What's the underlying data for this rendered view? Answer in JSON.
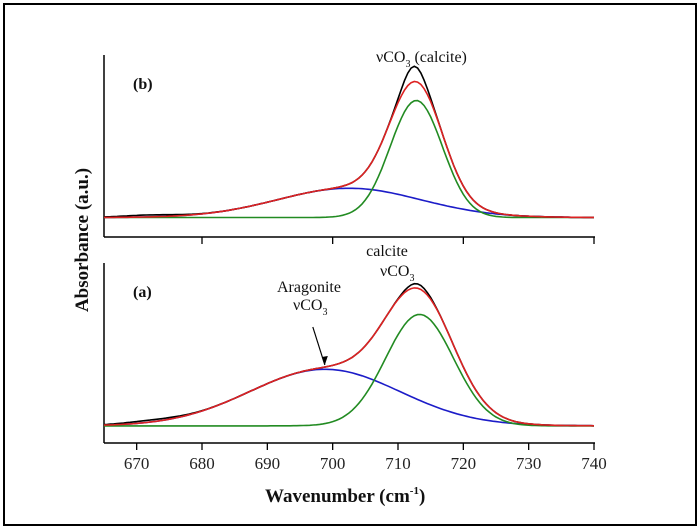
{
  "chart_data": {
    "type": "line",
    "xlabel": "Wavenumber (cm",
    "xlabel_sup": "-1",
    "xlabel_close": ")",
    "ylabel": "Absorbance (a.u.)",
    "xlim": [
      665,
      740
    ],
    "xticks": [
      670,
      680,
      690,
      700,
      710,
      720,
      730,
      740
    ],
    "grid": false,
    "legend": "none",
    "series_colors": {
      "measured": "#000000",
      "fit_sum": "#dd2222",
      "calcite_component": "#228b22",
      "aragonite_component": "#1c1cc8"
    },
    "panels": [
      {
        "id": "b",
        "label": "(b)",
        "annotation": {
          "prefix": "ν",
          "text": "CO",
          "sub": "3",
          "suffix": " (calcite)"
        },
        "baseline": 0.0,
        "ylim": [
          -0.12,
          1.0
        ],
        "components": {
          "calcite": {
            "center": 712.8,
            "amplitude": 0.72,
            "sigma": 4.0
          },
          "aragonite": {
            "center": 702.5,
            "amplitude": 0.18,
            "sigma": 11.0
          }
        },
        "measured_peak": {
          "x": 712.4,
          "y": 0.93
        }
      },
      {
        "id": "a",
        "label": "(a)",
        "annotation_calcite": {
          "line1": "calcite",
          "prefix": "ν",
          "text": "CO",
          "sub": "3"
        },
        "annotation_aragonite": {
          "line1": "Aragonite",
          "prefix": "ν",
          "text": "CO",
          "sub": "3",
          "arrow_to_x": 698.8
        },
        "baseline": 0.0,
        "ylim": [
          -0.1,
          0.95
        ],
        "components": {
          "calcite": {
            "center": 713.3,
            "amplitude": 0.65,
            "sigma": 5.2
          },
          "aragonite": {
            "center": 698.8,
            "amplitude": 0.33,
            "sigma": 11.5
          }
        },
        "measured_peak": {
          "x": 712.5,
          "y": 0.83
        }
      }
    ]
  }
}
